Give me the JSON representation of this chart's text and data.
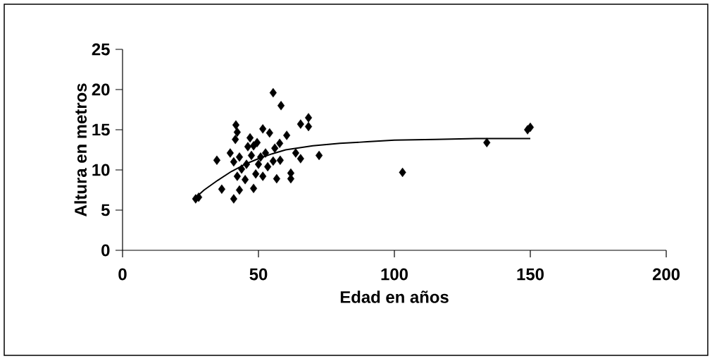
{
  "chart_data": {
    "type": "scatter",
    "xlabel": "Edad en años",
    "ylabel": "Altura en metros",
    "xlim": [
      0,
      200
    ],
    "ylim": [
      0,
      25
    ],
    "xticks": [
      0,
      50,
      100,
      150,
      200
    ],
    "yticks": [
      0,
      5,
      10,
      15,
      20,
      25
    ],
    "grid": false,
    "marker": "diamond",
    "series": [
      {
        "color": "#000000",
        "x": [
          55.4,
          58.3,
          68.4,
          65.5,
          68.4,
          41.7,
          42.2,
          41.5,
          51.6,
          54.1,
          46.9,
          49.5,
          46.1,
          60.4,
          39.6,
          34.7,
          72.3,
          61.9,
          61.9,
          56.7,
          36.5,
          40.9,
          26.9,
          28.0,
          40.9,
          43.0,
          43.8,
          42.2,
          45.1,
          48.2,
          47.4,
          50.0,
          49.0,
          51.6,
          53.4,
          52.6,
          56.0,
          57.8,
          55.4,
          58.0,
          63.7,
          65.5,
          50.8,
          45.6,
          48.2,
          43.0,
          103,
          134,
          149,
          150
        ],
        "values": [
          19.6,
          18.0,
          16.5,
          15.7,
          15.4,
          15.6,
          14.7,
          13.8,
          15.1,
          14.6,
          14.0,
          13.4,
          12.9,
          14.3,
          12.1,
          11.2,
          11.8,
          9.6,
          8.9,
          8.9,
          7.6,
          6.4,
          6.4,
          6.6,
          11.0,
          11.6,
          10.1,
          9.2,
          8.8,
          7.7,
          11.8,
          10.7,
          9.5,
          9.2,
          10.4,
          12.1,
          12.7,
          13.3,
          11.1,
          11.2,
          12.1,
          11.4,
          11.6,
          10.7,
          13.0,
          7.5,
          9.7,
          13.4,
          15.0,
          15.3
        ]
      },
      {
        "type": "line",
        "color": "#000000",
        "marker": "none",
        "x": [
          27,
          30,
          35,
          40,
          45,
          50,
          55,
          60,
          70,
          80,
          90,
          100,
          115,
          130,
          150
        ],
        "values": [
          6.6,
          7.5,
          8.7,
          9.8,
          10.7,
          11.4,
          12.0,
          12.5,
          13.0,
          13.3,
          13.5,
          13.7,
          13.8,
          13.9,
          13.9
        ]
      }
    ]
  }
}
